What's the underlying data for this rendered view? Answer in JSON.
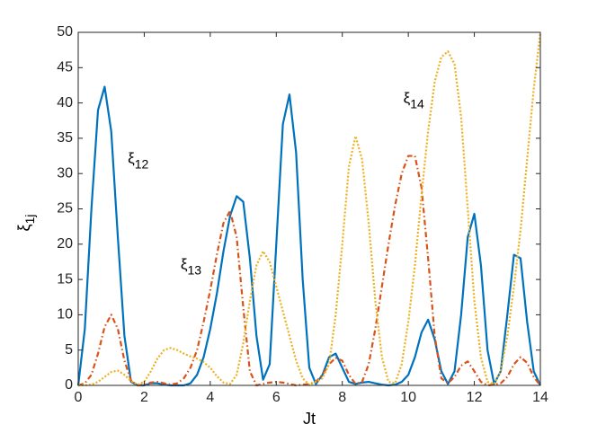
{
  "chart_data": {
    "type": "line",
    "xlabel": "Jt",
    "ylabel": {
      "symbol": "ξ",
      "subscript": "1j"
    },
    "annotations": [
      {
        "symbol": "ξ",
        "subscript": "12",
        "x": 1.5,
        "y": 32
      },
      {
        "symbol": "ξ",
        "subscript": "13",
        "x": 3.1,
        "y": 17
      },
      {
        "symbol": "ξ",
        "subscript": "14",
        "x": 9.85,
        "y": 40.5
      }
    ],
    "xlim": [
      0,
      14
    ],
    "ylim": [
      0,
      50
    ],
    "xticks": [
      0,
      2,
      4,
      6,
      8,
      10,
      12,
      14
    ],
    "yticks": [
      0,
      5,
      10,
      15,
      20,
      25,
      30,
      35,
      40,
      45,
      50
    ],
    "x": [
      0,
      0.2,
      0.4,
      0.6,
      0.8,
      1,
      1.2,
      1.4,
      1.6,
      1.8,
      2,
      2.2,
      2.4,
      2.6,
      2.8,
      3,
      3.2,
      3.4,
      3.6,
      3.8,
      4,
      4.2,
      4.4,
      4.6,
      4.8,
      5,
      5.2,
      5.4,
      5.6,
      5.8,
      6,
      6.2,
      6.4,
      6.6,
      6.8,
      7,
      7.2,
      7.4,
      7.6,
      7.8,
      8,
      8.2,
      8.4,
      8.6,
      8.8,
      9,
      9.2,
      9.4,
      9.6,
      9.8,
      10,
      10.2,
      10.4,
      10.6,
      10.8,
      11,
      11.2,
      11.4,
      11.6,
      11.8,
      12,
      12.2,
      12.4,
      12.6,
      12.8,
      13,
      13.2,
      13.4,
      13.6,
      13.8,
      14
    ],
    "series": [
      {
        "color": "#0072bd",
        "style": "solid",
        "values": [
          0,
          8,
          25,
          39,
          42.3,
          36,
          21,
          7,
          0.5,
          0,
          0,
          0.3,
          0.3,
          0.1,
          0,
          0,
          0,
          0.3,
          1.5,
          4,
          8,
          13,
          19,
          24,
          26.8,
          26,
          18,
          7,
          0.8,
          3,
          20,
          37,
          41.2,
          33,
          15,
          2.5,
          0.2,
          1.5,
          4,
          4.5,
          2.5,
          0.5,
          0.2,
          0.4,
          0.5,
          0.3,
          0.1,
          0,
          0.1,
          0.5,
          1.5,
          4,
          7.5,
          9.3,
          6.5,
          2,
          0.2,
          2,
          10,
          21,
          24.3,
          17,
          5,
          0.2,
          2,
          10,
          18.5,
          18,
          9,
          2,
          0
        ]
      },
      {
        "color": "#d95319",
        "style": "dashdot",
        "values": [
          0,
          0.3,
          1.5,
          4.5,
          8.3,
          10,
          8,
          3.5,
          0.7,
          0,
          0.1,
          0.4,
          0.5,
          0.3,
          0.1,
          0.3,
          1,
          2.5,
          5,
          9,
          13.5,
          18.5,
          23,
          24.7,
          21,
          11,
          2,
          0,
          0.2,
          0.4,
          0.5,
          0.4,
          0.2,
          0,
          0.1,
          0.2,
          0.5,
          1.5,
          3,
          3.9,
          3.5,
          1.5,
          0.2,
          0.5,
          3,
          8,
          14,
          20,
          25.5,
          30,
          32.5,
          32.5,
          28,
          18,
          7,
          1,
          0.3,
          1.2,
          2.8,
          3.4,
          2,
          0.5,
          0,
          0.1,
          0.3,
          1.2,
          3,
          4,
          3.2,
          1.2,
          0
        ]
      },
      {
        "color": "#edb120",
        "style": "dotted",
        "values": [
          0,
          0,
          0.1,
          0.5,
          1.2,
          1.9,
          2.1,
          1.5,
          0.6,
          0.1,
          0.5,
          2,
          3.8,
          5,
          5.3,
          5,
          4.5,
          4.1,
          3.8,
          3.3,
          2.5,
          1.3,
          0.4,
          0.2,
          1.5,
          6,
          12,
          17,
          19,
          17.5,
          14,
          10.5,
          7,
          3.5,
          1,
          0.1,
          0.5,
          1,
          3,
          10,
          20,
          31,
          35.3,
          32,
          23,
          12,
          4,
          0.5,
          0.3,
          3,
          9,
          17,
          27,
          36,
          43,
          46.5,
          47.3,
          45.5,
          38,
          25,
          12,
          4,
          0.5,
          0.2,
          2,
          7,
          14,
          22,
          32,
          42,
          50
        ]
      }
    ]
  }
}
